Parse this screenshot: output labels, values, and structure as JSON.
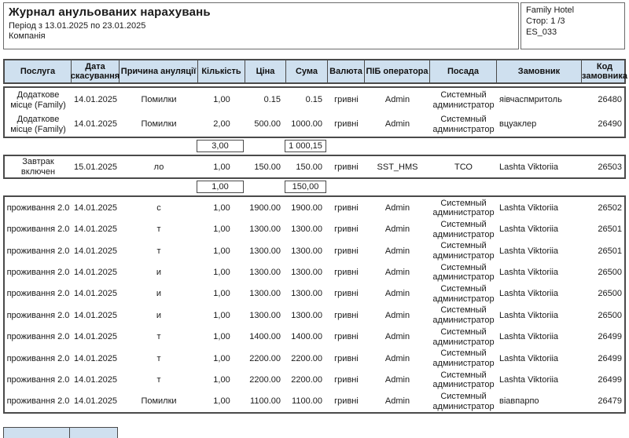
{
  "page_header": {
    "title": "Журнал анульованих нарахувань",
    "period": "Період з 13.01.2025 по 23.01.2025",
    "company_label": "Компанія",
    "hotel_name": "Family Hotel",
    "page_label": "Стор: 1 /3",
    "report_code": "ES_033"
  },
  "colors": {
    "header_bg": "#cfe0ef",
    "border": "#4a4a4a"
  },
  "table": {
    "columns": [
      "Послуга",
      "Дата скасування",
      "Причина ануляції",
      "Кількість",
      "Ціна",
      "Сума",
      "Валюта",
      "ПІБ оператора",
      "Посада",
      "Замовник",
      "Код замовника"
    ],
    "groups": [
      {
        "rows": [
          [
            "Додаткове місце (Family)",
            "14.01.2025",
            "Помилки",
            "1,00",
            "0.15",
            "0.15",
            "гривні",
            "Admin",
            "Системный администратор",
            "яівчаспмритоль",
            "26480"
          ],
          [
            "Додаткове місце (Family)",
            "14.01.2025",
            "Помилки",
            "2,00",
            "500.00",
            "1000.00",
            "гривні",
            "Admin",
            "Системный администратор",
            "вцуаклер",
            "26490"
          ]
        ],
        "subtotal": {
          "quantity": "3,00",
          "sum": "1 000,15"
        }
      },
      {
        "rows": [
          [
            "Завтрак включен",
            "15.01.2025",
            "ло",
            "1,00",
            "150.00",
            "150.00",
            "гривні",
            "SST_HMS",
            "ТСО",
            "Lashta Viktoriia",
            "26503"
          ]
        ],
        "subtotal": {
          "quantity": "1,00",
          "sum": "150,00"
        }
      },
      {
        "rows": [
          [
            "проживання 2.0",
            "14.01.2025",
            "с",
            "1,00",
            "1900.00",
            "1900.00",
            "гривні",
            "Admin",
            "Системный администратор",
            "Lashta Viktoriia",
            "26502"
          ],
          [
            "проживання 2.0",
            "14.01.2025",
            "т",
            "1,00",
            "1300.00",
            "1300.00",
            "гривні",
            "Admin",
            "Системный администратор",
            "Lashta Viktoriia",
            "26501"
          ],
          [
            "проживання 2.0",
            "14.01.2025",
            "т",
            "1,00",
            "1300.00",
            "1300.00",
            "гривні",
            "Admin",
            "Системный администратор",
            "Lashta Viktoriia",
            "26501"
          ],
          [
            "проживання 2.0",
            "14.01.2025",
            "и",
            "1,00",
            "1300.00",
            "1300.00",
            "гривні",
            "Admin",
            "Системный администратор",
            "Lashta Viktoriia",
            "26500"
          ],
          [
            "проживання 2.0",
            "14.01.2025",
            "и",
            "1,00",
            "1300.00",
            "1300.00",
            "гривні",
            "Admin",
            "Системный администратор",
            "Lashta Viktoriia",
            "26500"
          ],
          [
            "проживання 2.0",
            "14.01.2025",
            "и",
            "1,00",
            "1300.00",
            "1300.00",
            "гривні",
            "Admin",
            "Системный администратор",
            "Lashta Viktoriia",
            "26500"
          ],
          [
            "проживання 2.0",
            "14.01.2025",
            "т",
            "1,00",
            "1400.00",
            "1400.00",
            "гривні",
            "Admin",
            "Системный администратор",
            "Lashta Viktoriia",
            "26499"
          ],
          [
            "проживання 2.0",
            "14.01.2025",
            "т",
            "1,00",
            "2200.00",
            "2200.00",
            "гривні",
            "Admin",
            "Системный администратор",
            "Lashta Viktoriia",
            "26499"
          ],
          [
            "проживання 2.0",
            "14.01.2025",
            "т",
            "1,00",
            "2200.00",
            "2200.00",
            "гривні",
            "Admin",
            "Системный администратор",
            "Lashta Viktoriia",
            "26499"
          ],
          [
            "проживання 2.0",
            "14.01.2025",
            "Помилки",
            "1,00",
            "1100.00",
            "1100.00",
            "гривні",
            "Admin",
            "Системный администратор",
            "віавпарпо",
            "26479"
          ]
        ],
        "subtotal": null
      }
    ]
  }
}
